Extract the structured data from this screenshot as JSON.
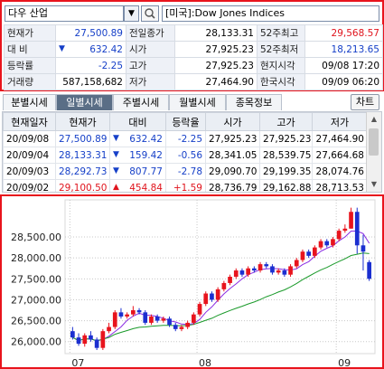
{
  "header": {
    "symbol": "다우 산업",
    "dropdown_icon": "chevron-down-icon",
    "search_icon": "search-icon",
    "market_label": "[미국]:Dow Jones Indices"
  },
  "info": {
    "current_price_label": "현재가",
    "current_price": "27,500.89",
    "change_label": "대 비",
    "change": "632.42",
    "change_rate_label": "등락률",
    "change_rate": "-2.25",
    "volume_label": "거래량",
    "volume": "587,158,682",
    "prev_close_label": "전일종가",
    "prev_close": "28,133.31",
    "open_label": "시가",
    "open": "27,925.23",
    "high_label": "고가",
    "high": "27,925.23",
    "low_label": "저가",
    "low": "27,464.90",
    "w52_high_label": "52주최고",
    "w52_high": "29,568.57",
    "w52_low_label": "52주최저",
    "w52_low": "18,213.65",
    "local_time_label": "현지시각",
    "local_time": "09/08 17:20",
    "kr_time_label": "한국시각",
    "kr_time": "09/09 06:20"
  },
  "tabs": [
    "분별시세",
    "일별시세",
    "주별시세",
    "월별시세",
    "종목정보"
  ],
  "active_tab": 1,
  "chart_button": "차트",
  "grid": {
    "columns": [
      "현재일자",
      "현재가",
      "대비",
      "등락율",
      "시가",
      "고가",
      "저가"
    ],
    "rows": [
      {
        "date": "20/09/08",
        "price": "27,500.89",
        "dir": "down",
        "chg": "632.42",
        "rate": "-2.25",
        "open": "27,925.23",
        "high": "27,925.23",
        "low": "27,464.90"
      },
      {
        "date": "20/09/04",
        "price": "28,133.31",
        "dir": "down",
        "chg": "159.42",
        "rate": "-0.56",
        "open": "28,341.05",
        "high": "28,539.75",
        "low": "27,664.68"
      },
      {
        "date": "20/09/03",
        "price": "28,292.73",
        "dir": "down",
        "chg": "807.77",
        "rate": "-2.78",
        "open": "29,090.70",
        "high": "29,199.35",
        "low": "28,074.76"
      },
      {
        "date": "20/09/02",
        "price": "29,100.50",
        "dir": "up",
        "chg": "454.84",
        "rate": "+1.59",
        "open": "28,736.79",
        "high": "29,162.88",
        "low": "28,713.53"
      }
    ]
  },
  "chart_data": {
    "type": "candlestick",
    "y_ticks": [
      "28,500.00",
      "28,000.00",
      "27,500.00",
      "27,000.00",
      "26,500.00",
      "26,000.00"
    ],
    "x_ticks": [
      "07",
      "08",
      "09"
    ],
    "colors": {
      "up": "#e8141d",
      "down": "#1b2fd0",
      "ma_short": "#8a2be2",
      "ma_long": "#1a9a2a"
    },
    "ylim": [
      25800,
      29300
    ],
    "candles": [
      [
        26250,
        26100,
        26350,
        26050
      ],
      [
        26100,
        25950,
        26200,
        25900
      ],
      [
        25950,
        26150,
        26200,
        25880
      ],
      [
        26150,
        26050,
        26250,
        26000
      ],
      [
        26050,
        25850,
        26100,
        25800
      ],
      [
        25850,
        26250,
        26300,
        25800
      ],
      [
        26250,
        26350,
        26450,
        26200
      ],
      [
        26350,
        26700,
        26750,
        26300
      ],
      [
        26700,
        26600,
        26800,
        26550
      ],
      [
        26600,
        26650,
        26700,
        26550
      ],
      [
        26650,
        26750,
        26850,
        26600
      ],
      [
        26750,
        26700,
        26800,
        26650
      ],
      [
        26700,
        26450,
        26750,
        26400
      ],
      [
        26450,
        26600,
        26650,
        26400
      ],
      [
        26600,
        26500,
        26650,
        26450
      ],
      [
        26500,
        26550,
        26600,
        26450
      ],
      [
        26550,
        26400,
        26600,
        26350
      ],
      [
        26400,
        26300,
        26450,
        26250
      ],
      [
        26300,
        26350,
        26400,
        26250
      ],
      [
        26350,
        26450,
        26500,
        26300
      ],
      [
        26450,
        26650,
        26700,
        26400
      ],
      [
        26650,
        26900,
        26950,
        26600
      ],
      [
        26900,
        27150,
        27200,
        26850
      ],
      [
        27150,
        27000,
        27200,
        26950
      ],
      [
        27000,
        27250,
        27300,
        26950
      ],
      [
        27250,
        27400,
        27450,
        27200
      ],
      [
        27400,
        27550,
        27600,
        27350
      ],
      [
        27550,
        27700,
        27750,
        27500
      ],
      [
        27700,
        27600,
        27750,
        27550
      ],
      [
        27600,
        27750,
        27800,
        27550
      ],
      [
        27750,
        27700,
        27800,
        27650
      ],
      [
        27700,
        27850,
        27900,
        27650
      ],
      [
        27850,
        27800,
        27900,
        27750
      ],
      [
        27800,
        27650,
        27850,
        27600
      ],
      [
        27650,
        27700,
        27750,
        27600
      ],
      [
        27700,
        27600,
        27750,
        27550
      ],
      [
        27600,
        27800,
        27850,
        27550
      ],
      [
        27800,
        27950,
        28000,
        27750
      ],
      [
        27950,
        28150,
        28200,
        27900
      ],
      [
        28150,
        28050,
        28200,
        28000
      ],
      [
        28050,
        28250,
        28300,
        28000
      ],
      [
        28250,
        28400,
        28450,
        28200
      ],
      [
        28400,
        28300,
        28450,
        28250
      ],
      [
        28300,
        28450,
        28500,
        28250
      ],
      [
        28450,
        28650,
        28700,
        28400
      ],
      [
        28650,
        28700,
        28800,
        28600
      ],
      [
        28700,
        29100,
        29200,
        28700
      ],
      [
        29100,
        28300,
        29200,
        28100
      ],
      [
        28300,
        28150,
        28550,
        27700
      ],
      [
        27900,
        27500,
        27950,
        27450
      ]
    ]
  }
}
